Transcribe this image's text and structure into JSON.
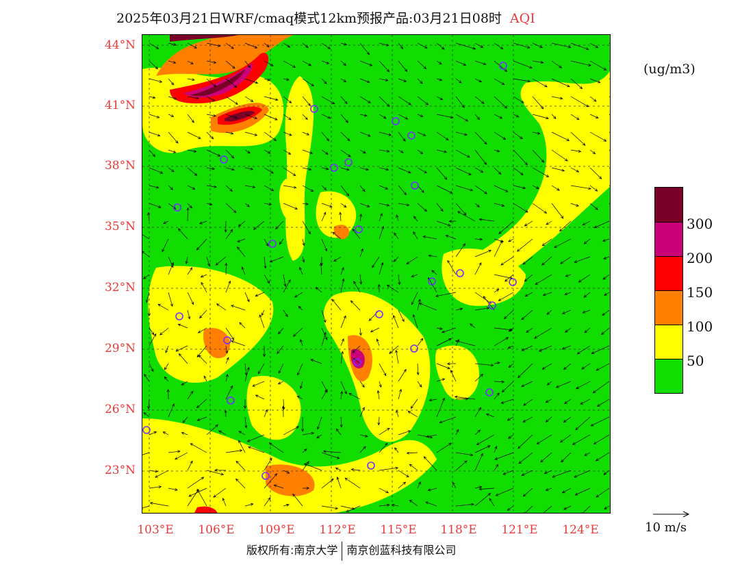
{
  "title": {
    "main": "2025年03月21日WRF/cmaq模式12km预报产品:03月21日08时",
    "variable": "AQI"
  },
  "units": "(ug/m3)",
  "lat_labels": [
    "44°N",
    "41°N",
    "38°N",
    "35°N",
    "32°N",
    "29°N",
    "26°N",
    "23°N"
  ],
  "lon_labels": [
    "103°E",
    "106°E",
    "109°E",
    "112°E",
    "115°E",
    "118°E",
    "121°E",
    "124°E"
  ],
  "colorbar": {
    "levels": [
      {
        "label": "300",
        "color": "#7a0028"
      },
      {
        "label": "200",
        "color": "#cc0077"
      },
      {
        "label": "150",
        "color": "#ff0000"
      },
      {
        "label": "100",
        "color": "#ff8000"
      },
      {
        "label": "50",
        "color": "#ffff00"
      },
      {
        "label": "",
        "color": "#11dd00"
      }
    ]
  },
  "wind_legend": "10 m/s",
  "copyright": {
    "left": "版权所有:南京大学",
    "right": "南京创蓝科技有限公司"
  }
}
